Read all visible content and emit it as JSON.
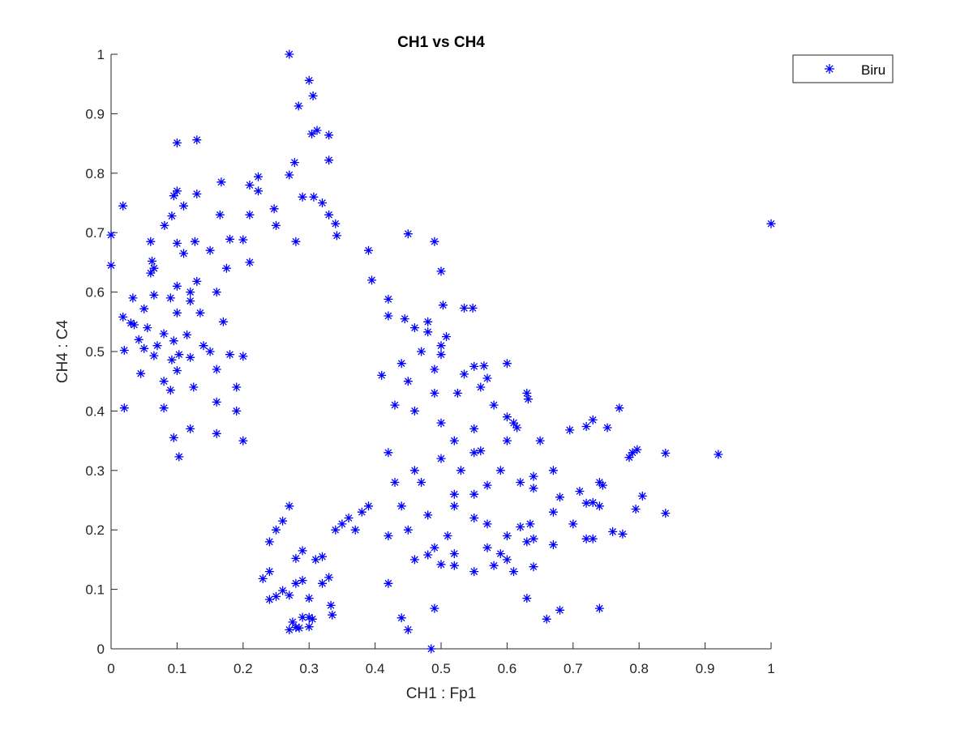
{
  "chart_data": {
    "type": "scatter",
    "title": "CH1 vs CH4",
    "xlabel": "CH1 : Fp1",
    "ylabel": "CH4 : C4",
    "xlim": [
      0,
      1
    ],
    "ylim": [
      0,
      1
    ],
    "xticks": [
      "0",
      "0.1",
      "0.2",
      "0.3",
      "0.4",
      "0.5",
      "0.6",
      "0.7",
      "0.8",
      "0.9",
      "1"
    ],
    "yticks": [
      "0",
      "0.1",
      "0.2",
      "0.3",
      "0.4",
      "0.5",
      "0.6",
      "0.7",
      "0.8",
      "0.9",
      "1"
    ],
    "grid": false,
    "legend": {
      "position": "top-right",
      "entries": [
        "Biru"
      ]
    },
    "marker": "asterisk",
    "color": "#0000ff",
    "series": [
      {
        "name": "Biru",
        "points": [
          [
            0.27,
            1.0
          ],
          [
            0.3,
            0.956
          ],
          [
            0.306,
            0.93
          ],
          [
            0.284,
            0.913
          ],
          [
            0.312,
            0.872
          ],
          [
            0.304,
            0.866
          ],
          [
            0.33,
            0.864
          ],
          [
            0.1,
            0.851
          ],
          [
            0.13,
            0.856
          ],
          [
            0.33,
            0.822
          ],
          [
            0.278,
            0.818
          ],
          [
            0.27,
            0.797
          ],
          [
            0.167,
            0.785
          ],
          [
            0.223,
            0.794
          ],
          [
            0.1,
            0.77
          ],
          [
            0.13,
            0.765
          ],
          [
            0.095,
            0.762
          ],
          [
            0.21,
            0.78
          ],
          [
            0.223,
            0.77
          ],
          [
            0.29,
            0.76
          ],
          [
            0.307,
            0.76
          ],
          [
            0.32,
            0.75
          ],
          [
            0.018,
            0.745
          ],
          [
            0.11,
            0.745
          ],
          [
            0.092,
            0.728
          ],
          [
            0.165,
            0.73
          ],
          [
            0.21,
            0.73
          ],
          [
            0.247,
            0.74
          ],
          [
            0.33,
            0.73
          ],
          [
            0.34,
            0.715
          ],
          [
            0.081,
            0.712
          ],
          [
            0.25,
            0.712
          ],
          [
            0.0,
            0.696
          ],
          [
            0.127,
            0.685
          ],
          [
            0.06,
            0.685
          ],
          [
            0.1,
            0.682
          ],
          [
            0.18,
            0.689
          ],
          [
            0.2,
            0.688
          ],
          [
            0.28,
            0.685
          ],
          [
            0.342,
            0.695
          ],
          [
            0.45,
            0.698
          ],
          [
            0.49,
            0.685
          ],
          [
            0.39,
            0.67
          ],
          [
            0.0,
            0.645
          ],
          [
            0.062,
            0.652
          ],
          [
            0.11,
            0.665
          ],
          [
            0.15,
            0.67
          ],
          [
            0.06,
            0.632
          ],
          [
            0.065,
            0.64
          ],
          [
            0.1,
            0.61
          ],
          [
            0.13,
            0.618
          ],
          [
            0.175,
            0.64
          ],
          [
            0.21,
            0.65
          ],
          [
            0.5,
            0.635
          ],
          [
            0.395,
            0.62
          ],
          [
            0.065,
            0.595
          ],
          [
            0.033,
            0.59
          ],
          [
            0.09,
            0.59
          ],
          [
            0.12,
            0.6
          ],
          [
            0.16,
            0.6
          ],
          [
            0.018,
            0.558
          ],
          [
            0.03,
            0.548
          ],
          [
            0.05,
            0.572
          ],
          [
            0.1,
            0.565
          ],
          [
            0.12,
            0.585
          ],
          [
            0.42,
            0.588
          ],
          [
            0.503,
            0.578
          ],
          [
            0.535,
            0.573
          ],
          [
            0.548,
            0.573
          ],
          [
            0.42,
            0.56
          ],
          [
            0.035,
            0.545
          ],
          [
            0.055,
            0.54
          ],
          [
            0.08,
            0.53
          ],
          [
            0.135,
            0.565
          ],
          [
            0.17,
            0.55
          ],
          [
            0.46,
            0.54
          ],
          [
            0.445,
            0.555
          ],
          [
            0.48,
            0.55
          ],
          [
            0.48,
            0.533
          ],
          [
            0.042,
            0.52
          ],
          [
            0.05,
            0.505
          ],
          [
            0.02,
            0.502
          ],
          [
            0.07,
            0.51
          ],
          [
            0.095,
            0.518
          ],
          [
            0.115,
            0.528
          ],
          [
            0.14,
            0.51
          ],
          [
            0.5,
            0.51
          ],
          [
            0.508,
            0.525
          ],
          [
            0.5,
            0.495
          ],
          [
            0.045,
            0.463
          ],
          [
            0.065,
            0.493
          ],
          [
            0.092,
            0.486
          ],
          [
            0.103,
            0.495
          ],
          [
            0.12,
            0.49
          ],
          [
            0.15,
            0.5
          ],
          [
            0.18,
            0.495
          ],
          [
            0.2,
            0.492
          ],
          [
            0.44,
            0.48
          ],
          [
            0.47,
            0.5
          ],
          [
            0.49,
            0.47
          ],
          [
            0.535,
            0.462
          ],
          [
            0.55,
            0.475
          ],
          [
            0.565,
            0.476
          ],
          [
            0.6,
            0.48
          ],
          [
            0.57,
            0.455
          ],
          [
            0.08,
            0.45
          ],
          [
            0.09,
            0.435
          ],
          [
            0.1,
            0.468
          ],
          [
            0.125,
            0.44
          ],
          [
            0.16,
            0.47
          ],
          [
            0.19,
            0.44
          ],
          [
            0.41,
            0.46
          ],
          [
            0.45,
            0.45
          ],
          [
            0.49,
            0.43
          ],
          [
            0.525,
            0.43
          ],
          [
            0.56,
            0.44
          ],
          [
            0.63,
            0.43
          ],
          [
            0.632,
            0.42
          ],
          [
            0.58,
            0.41
          ],
          [
            0.02,
            0.405
          ],
          [
            0.08,
            0.405
          ],
          [
            0.16,
            0.415
          ],
          [
            0.19,
            0.4
          ],
          [
            0.43,
            0.41
          ],
          [
            0.46,
            0.4
          ],
          [
            0.5,
            0.38
          ],
          [
            0.55,
            0.37
          ],
          [
            0.6,
            0.39
          ],
          [
            0.61,
            0.38
          ],
          [
            0.615,
            0.372
          ],
          [
            0.65,
            0.35
          ],
          [
            0.695,
            0.368
          ],
          [
            0.72,
            0.374
          ],
          [
            0.73,
            0.385
          ],
          [
            0.752,
            0.372
          ],
          [
            0.77,
            0.405
          ],
          [
            0.095,
            0.355
          ],
          [
            0.16,
            0.362
          ],
          [
            0.12,
            0.37
          ],
          [
            0.2,
            0.35
          ],
          [
            0.52,
            0.35
          ],
          [
            0.55,
            0.33
          ],
          [
            0.6,
            0.35
          ],
          [
            0.103,
            0.323
          ],
          [
            0.42,
            0.33
          ],
          [
            0.46,
            0.3
          ],
          [
            0.5,
            0.32
          ],
          [
            0.53,
            0.3
          ],
          [
            0.56,
            0.333
          ],
          [
            0.59,
            0.3
          ],
          [
            0.79,
            0.33
          ],
          [
            0.797,
            0.335
          ],
          [
            0.84,
            0.329
          ],
          [
            0.92,
            0.327
          ],
          [
            0.785,
            0.322
          ],
          [
            1.0,
            0.715
          ],
          [
            0.43,
            0.28
          ],
          [
            0.47,
            0.28
          ],
          [
            0.52,
            0.26
          ],
          [
            0.55,
            0.26
          ],
          [
            0.57,
            0.275
          ],
          [
            0.62,
            0.28
          ],
          [
            0.64,
            0.29
          ],
          [
            0.67,
            0.3
          ],
          [
            0.64,
            0.27
          ],
          [
            0.68,
            0.255
          ],
          [
            0.71,
            0.265
          ],
          [
            0.72,
            0.245
          ],
          [
            0.74,
            0.28
          ],
          [
            0.745,
            0.275
          ],
          [
            0.805,
            0.257
          ],
          [
            0.795,
            0.235
          ],
          [
            0.84,
            0.228
          ],
          [
            0.44,
            0.24
          ],
          [
            0.48,
            0.225
          ],
          [
            0.52,
            0.24
          ],
          [
            0.55,
            0.22
          ],
          [
            0.57,
            0.21
          ],
          [
            0.6,
            0.19
          ],
          [
            0.62,
            0.205
          ],
          [
            0.635,
            0.21
          ],
          [
            0.67,
            0.23
          ],
          [
            0.7,
            0.21
          ],
          [
            0.73,
            0.246
          ],
          [
            0.74,
            0.24
          ],
          [
            0.76,
            0.197
          ],
          [
            0.775,
            0.193
          ],
          [
            0.42,
            0.19
          ],
          [
            0.45,
            0.2
          ],
          [
            0.49,
            0.17
          ],
          [
            0.51,
            0.19
          ],
          [
            0.52,
            0.16
          ],
          [
            0.57,
            0.17
          ],
          [
            0.63,
            0.18
          ],
          [
            0.64,
            0.185
          ],
          [
            0.67,
            0.175
          ],
          [
            0.72,
            0.185
          ],
          [
            0.73,
            0.185
          ],
          [
            0.46,
            0.15
          ],
          [
            0.48,
            0.158
          ],
          [
            0.52,
            0.14
          ],
          [
            0.55,
            0.13
          ],
          [
            0.58,
            0.14
          ],
          [
            0.6,
            0.15
          ],
          [
            0.59,
            0.16
          ],
          [
            0.61,
            0.13
          ],
          [
            0.64,
            0.138
          ],
          [
            0.42,
            0.11
          ],
          [
            0.5,
            0.142
          ],
          [
            0.63,
            0.085
          ],
          [
            0.49,
            0.068
          ],
          [
            0.44,
            0.052
          ],
          [
            0.45,
            0.032
          ],
          [
            0.485,
            0.0
          ],
          [
            0.66,
            0.05
          ],
          [
            0.68,
            0.065
          ],
          [
            0.74,
            0.068
          ],
          [
            0.27,
            0.032
          ],
          [
            0.28,
            0.036
          ],
          [
            0.285,
            0.035
          ],
          [
            0.3,
            0.037
          ],
          [
            0.275,
            0.045
          ],
          [
            0.29,
            0.053
          ],
          [
            0.3,
            0.053
          ],
          [
            0.305,
            0.05
          ],
          [
            0.335,
            0.057
          ],
          [
            0.333,
            0.073
          ],
          [
            0.24,
            0.083
          ],
          [
            0.25,
            0.088
          ],
          [
            0.26,
            0.098
          ],
          [
            0.27,
            0.09
          ],
          [
            0.3,
            0.085
          ],
          [
            0.23,
            0.118
          ],
          [
            0.24,
            0.13
          ],
          [
            0.28,
            0.11
          ],
          [
            0.29,
            0.115
          ],
          [
            0.32,
            0.11
          ],
          [
            0.33,
            0.12
          ],
          [
            0.24,
            0.18
          ],
          [
            0.25,
            0.2
          ],
          [
            0.26,
            0.215
          ],
          [
            0.27,
            0.24
          ],
          [
            0.28,
            0.152
          ],
          [
            0.29,
            0.165
          ],
          [
            0.31,
            0.15
          ],
          [
            0.32,
            0.155
          ],
          [
            0.34,
            0.2
          ],
          [
            0.35,
            0.21
          ],
          [
            0.36,
            0.22
          ],
          [
            0.37,
            0.2
          ],
          [
            0.38,
            0.23
          ],
          [
            0.39,
            0.24
          ]
        ]
      }
    ]
  }
}
